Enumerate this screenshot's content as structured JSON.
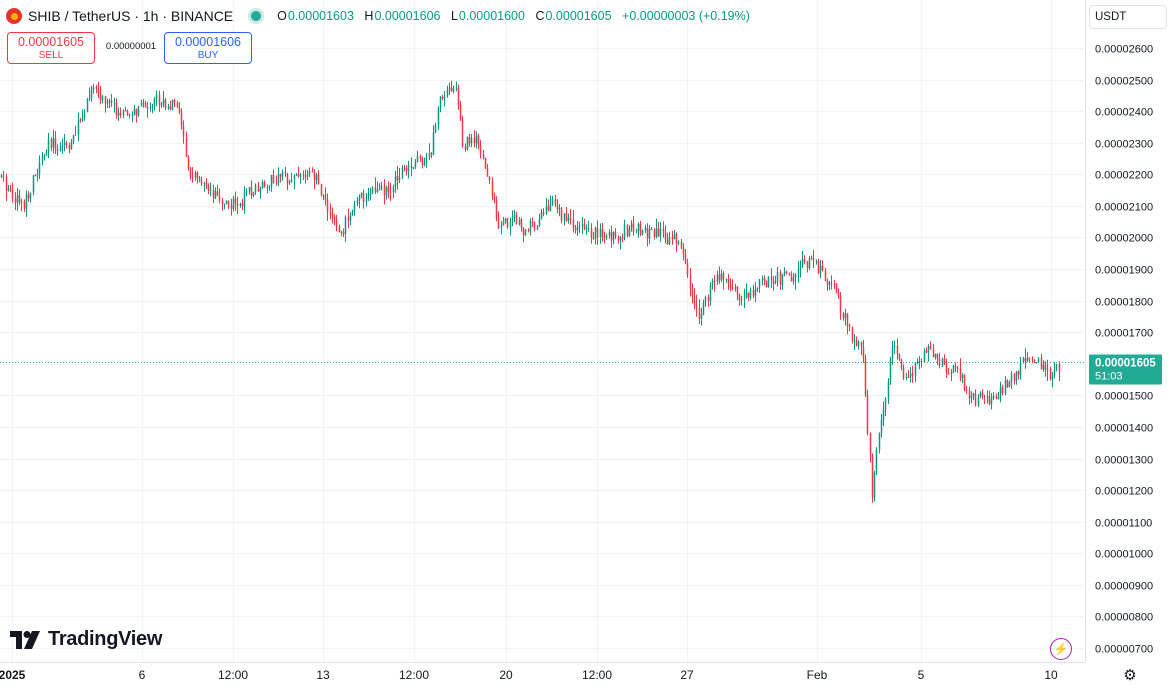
{
  "header": {
    "symbol": "SHIB / TetherUS · 1h · BINANCE",
    "ohlc": [
      {
        "label": "O",
        "value": "0.00001603"
      },
      {
        "label": "H",
        "value": "0.00001606"
      },
      {
        "label": "L",
        "value": "0.00001600"
      },
      {
        "label": "C",
        "value": "0.00001605"
      }
    ],
    "change": "+0.00000003 (+0.19%)"
  },
  "trade": {
    "sell_price": "0.00001605",
    "sell_label": "SELL",
    "spread": "0.00000001",
    "buy_price": "0.00001606",
    "buy_label": "BUY"
  },
  "currency": "USDT",
  "brand": "TradingView",
  "icons": {
    "coin": "shib-coin-icon",
    "market": "market-open-icon",
    "bolt": "lightning-icon",
    "settings": "gear-icon"
  },
  "colors": {
    "up": "#089981",
    "down": "#f23645",
    "sell": "#f23645",
    "buy": "#2962ff",
    "price_line": "#22ab94"
  },
  "chart_data": {
    "type": "candlestick",
    "y_axis_ticks": [
      "0.00002600",
      "0.00002500",
      "0.00002400",
      "0.00002300",
      "0.00002200",
      "0.00002100",
      "0.00002000",
      "0.00001900",
      "0.00001800",
      "0.00001700",
      "0.00001600",
      "0.00001500",
      "0.00001400",
      "0.00001300",
      "0.00001200",
      "0.00001100",
      "0.00001000",
      "0.00000900",
      "0.00000800",
      "0.00000700"
    ],
    "x_axis_ticks": [
      "2025",
      "6",
      "12:00",
      "13",
      "12:00",
      "20",
      "12:00",
      "27",
      "Feb",
      "5",
      "10"
    ],
    "ylim": [
      6.6e-06,
      2.66e-05
    ],
    "last_price": {
      "value": "0.00001605",
      "countdown": "51:03"
    },
    "price_path": [
      [
        0,
        2.19e-05
      ],
      [
        22,
        2.1e-05
      ],
      [
        48,
        2.29e-05
      ],
      [
        72,
        2.3e-05
      ],
      [
        90,
        2.47e-05
      ],
      [
        125,
        2.38e-05
      ],
      [
        158,
        2.44e-05
      ],
      [
        180,
        2.4e-05
      ],
      [
        186,
        2.22e-05
      ],
      [
        210,
        2.13e-05
      ],
      [
        235,
        2.1e-05
      ],
      [
        260,
        2.17e-05
      ],
      [
        295,
        2.2e-05
      ],
      [
        315,
        2.19e-05
      ],
      [
        340,
        2e-05
      ],
      [
        350,
        2.09e-05
      ],
      [
        370,
        2.15e-05
      ],
      [
        390,
        2.14e-05
      ],
      [
        400,
        2.22e-05
      ],
      [
        430,
        2.26e-05
      ],
      [
        440,
        2.46e-05
      ],
      [
        456,
        2.48e-05
      ],
      [
        462,
        2.29e-05
      ],
      [
        475,
        2.31e-05
      ],
      [
        485,
        2.22e-05
      ],
      [
        500,
        2.03e-05
      ],
      [
        515,
        2.07e-05
      ],
      [
        525,
        2.01e-05
      ],
      [
        550,
        2.11e-05
      ],
      [
        575,
        2.03e-05
      ],
      [
        610,
        2e-05
      ],
      [
        630,
        2.03e-05
      ],
      [
        680,
        1.99e-05
      ],
      [
        690,
        1.83e-05
      ],
      [
        698,
        1.76e-05
      ],
      [
        720,
        1.89e-05
      ],
      [
        740,
        1.81e-05
      ],
      [
        770,
        1.87e-05
      ],
      [
        790,
        1.87e-05
      ],
      [
        808,
        1.93e-05
      ],
      [
        830,
        1.86e-05
      ],
      [
        850,
        1.7e-05
      ],
      [
        862,
        1.63e-05
      ],
      [
        868,
        1.36e-05
      ],
      [
        872,
        1.18e-05
      ],
      [
        878,
        1.37e-05
      ],
      [
        893,
        1.66e-05
      ],
      [
        905,
        1.54e-05
      ],
      [
        930,
        1.65e-05
      ],
      [
        945,
        1.58e-05
      ],
      [
        960,
        1.57e-05
      ],
      [
        970,
        1.49e-05
      ],
      [
        995,
        1.49e-05
      ],
      [
        1010,
        1.55e-05
      ],
      [
        1030,
        1.63e-05
      ],
      [
        1048,
        1.56e-05
      ],
      [
        1060,
        1.6e-05
      ]
    ]
  }
}
